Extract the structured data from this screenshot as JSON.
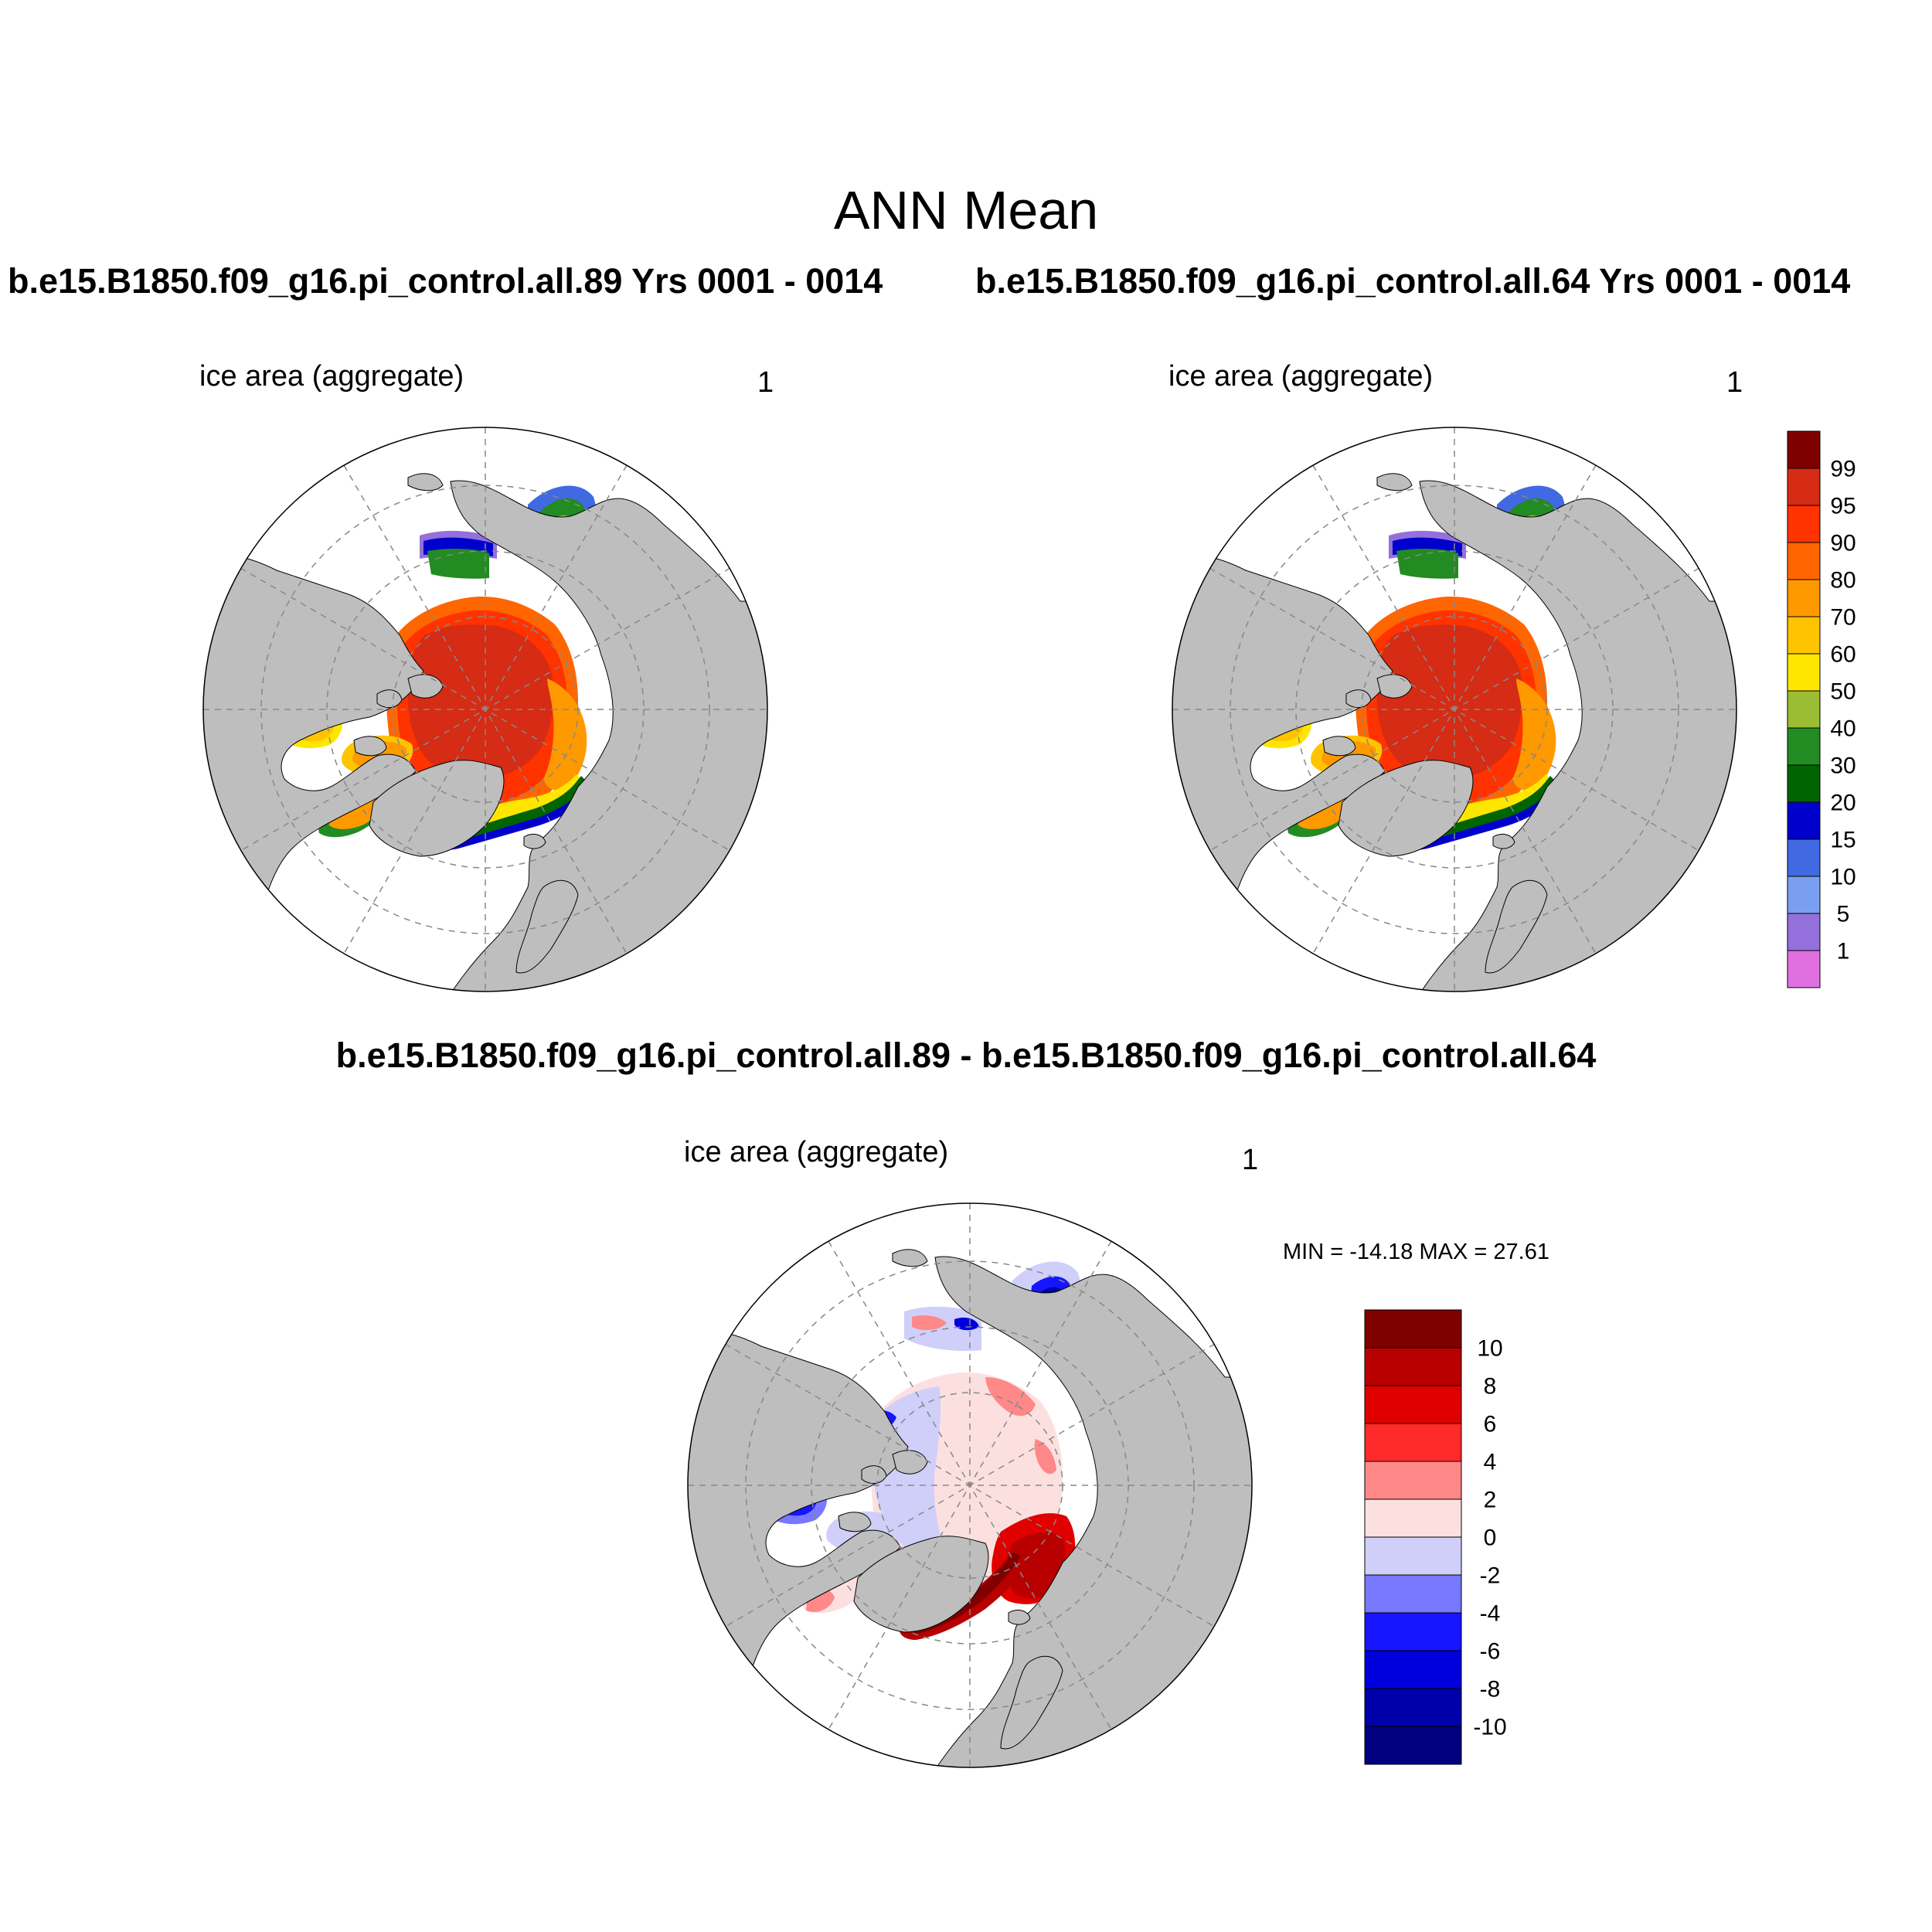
{
  "title": "ANN Mean",
  "panels": [
    {
      "title": "b.e15.B1850.f09_g16.pi_control.all.89  Yrs 0001 - 0014",
      "variable": "ice area  (aggregate)",
      "units": "1"
    },
    {
      "title": "b.e15.B1850.f09_g16.pi_control.all.64  Yrs 0001 - 0014",
      "variable": "ice area  (aggregate)",
      "units": "1"
    }
  ],
  "difference": {
    "title": "b.e15.B1850.f09_g16.pi_control.all.89 - b.e15.B1850.f09_g16.pi_control.all.64",
    "variable": "ice area  (aggregate)",
    "units": "1",
    "minmax": "MIN = -14.18 MAX =  27.61"
  },
  "colorbars": {
    "ice": {
      "labels": [
        "99",
        "95",
        "90",
        "80",
        "70",
        "60",
        "50",
        "40",
        "30",
        "20",
        "15",
        "10",
        "5",
        "1"
      ],
      "colors": [
        "#800000",
        "#d62b14",
        "#ff3300",
        "#ff6600",
        "#ff9900",
        "#ffc400",
        "#ffe600",
        "#9abd33",
        "#228b22",
        "#006400",
        "#0000cd",
        "#4169e1",
        "#7b9ff0",
        "#9370db",
        "#e070e0"
      ]
    },
    "diff": {
      "labels": [
        "10",
        "8",
        "6",
        "4",
        "2",
        "0",
        "-2",
        "-4",
        "-6",
        "-8",
        "-10"
      ],
      "colors": [
        "#800000",
        "#b80000",
        "#e00000",
        "#ff2a2a",
        "#ff8888",
        "#fce0e0",
        "#cfcffa",
        "#7878ff",
        "#1515ff",
        "#0000dd",
        "#0000aa",
        "#000080"
      ]
    }
  },
  "colors": {
    "land": "#bebebe",
    "ocean": "#ffffff",
    "grid": "#888888"
  }
}
